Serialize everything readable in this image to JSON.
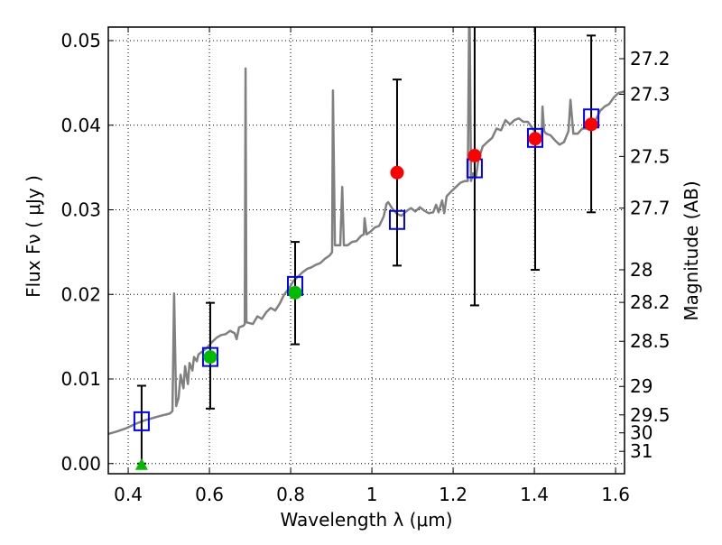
{
  "chart_data": {
    "type": "scatter",
    "xlabel": "Wavelength  λ (μm)",
    "ylabel": "Flux  Fν ( μJy )",
    "ylabel_right": "Magnitude (AB)",
    "xlim": [
      0.351,
      1.622
    ],
    "ylim": [
      -0.0012,
      0.0516
    ],
    "grid": true,
    "x_ticks": [
      "0.4",
      "0.6",
      "0.8",
      "1",
      "1.2",
      "1.4",
      "1.6"
    ],
    "x_tick_values": [
      0.4,
      0.6,
      0.8,
      1.0,
      1.2,
      1.4,
      1.6
    ],
    "y_ticks": [
      "0.00",
      "0.01",
      "0.02",
      "0.03",
      "0.04",
      "0.05"
    ],
    "y_tick_values": [
      0,
      0.01,
      0.02,
      0.03,
      0.04,
      0.05
    ],
    "mag_ticks": [
      "27.2",
      "27.3",
      "27.5",
      "27.7",
      "28",
      "28.2",
      "28.5",
      "29",
      "29.5",
      "30",
      "31"
    ],
    "mag_tick_values": [
      27.2,
      27.3,
      27.5,
      27.7,
      28,
      28.2,
      28.5,
      29,
      29.5,
      30,
      31
    ],
    "mag_zeropoint": 23.9,
    "colors": {
      "spectrum": "#808080",
      "model": "#0000ff",
      "detection_optical": "#00bb00",
      "detection_ir": "#ff0000",
      "errorbar": "#000000"
    },
    "spectrum": [
      [
        0.351,
        0.0035
      ],
      [
        0.373,
        0.0038
      ],
      [
        0.396,
        0.0042
      ],
      [
        0.418,
        0.0047
      ],
      [
        0.44,
        0.0051
      ],
      [
        0.462,
        0.0054
      ],
      [
        0.484,
        0.0057
      ],
      [
        0.502,
        0.0059
      ],
      [
        0.509,
        0.0062
      ],
      [
        0.513,
        0.0201
      ],
      [
        0.518,
        0.0068
      ],
      [
        0.524,
        0.0078
      ],
      [
        0.529,
        0.0105
      ],
      [
        0.536,
        0.0089
      ],
      [
        0.54,
        0.0115
      ],
      [
        0.547,
        0.0094
      ],
      [
        0.551,
        0.0119
      ],
      [
        0.558,
        0.011
      ],
      [
        0.562,
        0.0126
      ],
      [
        0.569,
        0.0121
      ],
      [
        0.573,
        0.0129
      ],
      [
        0.584,
        0.0133
      ],
      [
        0.596,
        0.0138
      ],
      [
        0.607,
        0.0144
      ],
      [
        0.618,
        0.0149
      ],
      [
        0.629,
        0.0152
      ],
      [
        0.64,
        0.0153
      ],
      [
        0.651,
        0.0157
      ],
      [
        0.662,
        0.0154
      ],
      [
        0.667,
        0.0147
      ],
      [
        0.673,
        0.0161
      ],
      [
        0.684,
        0.0163
      ],
      [
        0.687,
        0.0165
      ],
      [
        0.689,
        0.0467
      ],
      [
        0.691,
        0.0167
      ],
      [
        0.707,
        0.0165
      ],
      [
        0.718,
        0.0174
      ],
      [
        0.729,
        0.0171
      ],
      [
        0.74,
        0.0179
      ],
      [
        0.751,
        0.0184
      ],
      [
        0.762,
        0.0181
      ],
      [
        0.773,
        0.0189
      ],
      [
        0.784,
        0.02
      ],
      [
        0.796,
        0.0207
      ],
      [
        0.807,
        0.0216
      ],
      [
        0.818,
        0.0221
      ],
      [
        0.829,
        0.0226
      ],
      [
        0.84,
        0.023
      ],
      [
        0.851,
        0.0232
      ],
      [
        0.862,
        0.0235
      ],
      [
        0.873,
        0.0237
      ],
      [
        0.884,
        0.0242
      ],
      [
        0.896,
        0.0246
      ],
      [
        0.902,
        0.025
      ],
      [
        0.904,
        0.0441
      ],
      [
        0.909,
        0.0258
      ],
      [
        0.922,
        0.0258
      ],
      [
        0.927,
        0.0327
      ],
      [
        0.931,
        0.0258
      ],
      [
        0.94,
        0.0258
      ],
      [
        0.951,
        0.0262
      ],
      [
        0.962,
        0.0263
      ],
      [
        0.973,
        0.0269
      ],
      [
        0.98,
        0.0271
      ],
      [
        0.982,
        0.029
      ],
      [
        0.987,
        0.0271
      ],
      [
        0.996,
        0.0274
      ],
      [
        1.007,
        0.0279
      ],
      [
        1.018,
        0.0281
      ],
      [
        1.029,
        0.0292
      ],
      [
        1.036,
        0.0307
      ],
      [
        1.04,
        0.0309
      ],
      [
        1.051,
        0.0301
      ],
      [
        1.062,
        0.0295
      ],
      [
        1.073,
        0.0293
      ],
      [
        1.084,
        0.0298
      ],
      [
        1.096,
        0.0302
      ],
      [
        1.107,
        0.0298
      ],
      [
        1.118,
        0.0303
      ],
      [
        1.129,
        0.0299
      ],
      [
        1.14,
        0.0296
      ],
      [
        1.151,
        0.0297
      ],
      [
        1.158,
        0.0306
      ],
      [
        1.164,
        0.0297
      ],
      [
        1.173,
        0.0311
      ],
      [
        1.178,
        0.0296
      ],
      [
        1.184,
        0.0316
      ],
      [
        1.196,
        0.0322
      ],
      [
        1.207,
        0.0327
      ],
      [
        1.218,
        0.0332
      ],
      [
        1.229,
        0.0334
      ],
      [
        1.236,
        0.0334
      ],
      [
        1.24,
        0.056
      ],
      [
        1.244,
        0.0334
      ],
      [
        1.249,
        0.0343
      ],
      [
        1.256,
        0.0338
      ],
      [
        1.262,
        0.0359
      ],
      [
        1.273,
        0.0375
      ],
      [
        1.284,
        0.038
      ],
      [
        1.296,
        0.0385
      ],
      [
        1.307,
        0.0396
      ],
      [
        1.318,
        0.0394
      ],
      [
        1.329,
        0.0406
      ],
      [
        1.34,
        0.0401
      ],
      [
        1.351,
        0.0406
      ],
      [
        1.362,
        0.0408
      ],
      [
        1.373,
        0.0404
      ],
      [
        1.384,
        0.0404
      ],
      [
        1.396,
        0.0396
      ],
      [
        1.407,
        0.0388
      ],
      [
        1.418,
        0.0387
      ],
      [
        1.42,
        0.0422
      ],
      [
        1.424,
        0.0393
      ],
      [
        1.429,
        0.039
      ],
      [
        1.44,
        0.0388
      ],
      [
        1.451,
        0.0382
      ],
      [
        1.462,
        0.0377
      ],
      [
        1.473,
        0.038
      ],
      [
        1.484,
        0.0393
      ],
      [
        1.489,
        0.043
      ],
      [
        1.496,
        0.039
      ],
      [
        1.507,
        0.039
      ],
      [
        1.518,
        0.0396
      ],
      [
        1.529,
        0.0396
      ],
      [
        1.54,
        0.0401
      ],
      [
        1.551,
        0.0406
      ],
      [
        1.562,
        0.0417
      ],
      [
        1.573,
        0.0422
      ],
      [
        1.584,
        0.0425
      ],
      [
        1.596,
        0.0433
      ],
      [
        1.607,
        0.0438
      ],
      [
        1.622,
        0.044
      ]
    ],
    "model_points": [
      {
        "x": 0.433,
        "y": 0.005
      },
      {
        "x": 0.602,
        "y": 0.0126
      },
      {
        "x": 0.811,
        "y": 0.021
      },
      {
        "x": 1.062,
        "y": 0.0288
      },
      {
        "x": 1.253,
        "y": 0.0349
      },
      {
        "x": 1.402,
        "y": 0.0385
      },
      {
        "x": 1.54,
        "y": 0.0408
      }
    ],
    "observed_points": [
      {
        "x": 0.433,
        "y": 0.0,
        "err_low": 0.0,
        "err_high": 0.0092,
        "marker": "triangle",
        "color": "#00bb00"
      },
      {
        "x": 0.602,
        "y": 0.0126,
        "err_low": 0.0065,
        "err_high": 0.019,
        "marker": "circle",
        "color": "#00bb00"
      },
      {
        "x": 0.811,
        "y": 0.0202,
        "err_low": 0.0141,
        "err_high": 0.0262,
        "marker": "circle",
        "color": "#00bb00"
      },
      {
        "x": 1.062,
        "y": 0.0344,
        "err_low": 0.0234,
        "err_high": 0.0454,
        "marker": "circle",
        "color": "#ff0000"
      },
      {
        "x": 1.253,
        "y": 0.0364,
        "err_low": 0.0187,
        "err_high": 0.056,
        "marker": "circle",
        "color": "#ff0000"
      },
      {
        "x": 1.402,
        "y": 0.0384,
        "err_low": 0.0229,
        "err_high": 0.056,
        "marker": "circle",
        "color": "#ff0000"
      },
      {
        "x": 1.54,
        "y": 0.0401,
        "err_low": 0.0297,
        "err_high": 0.0506,
        "marker": "circle",
        "color": "#ff0000"
      }
    ]
  }
}
